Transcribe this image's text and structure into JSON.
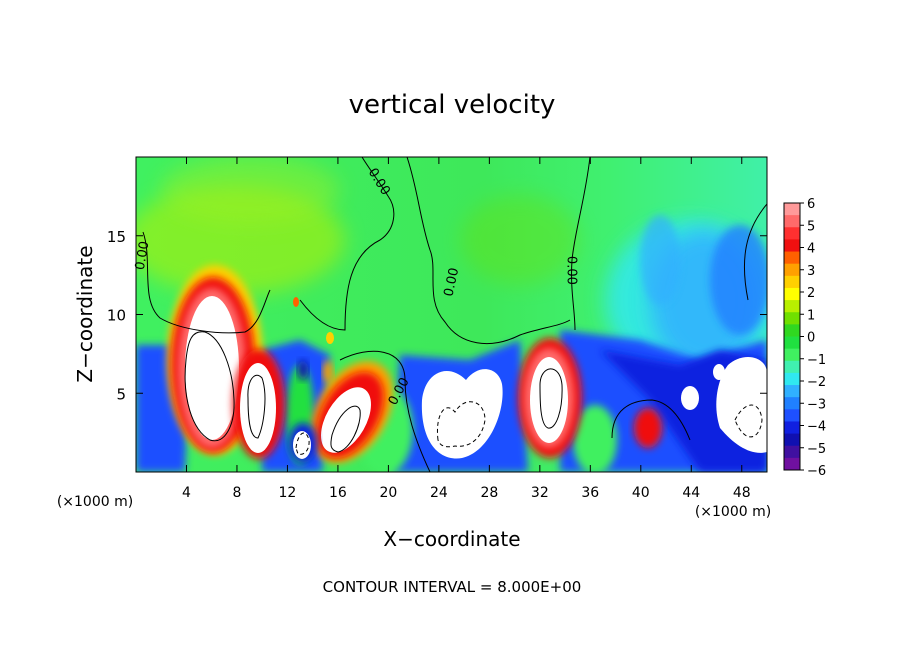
{
  "chart_data": {
    "type": "heatmap",
    "title": "vertical velocity",
    "xlabel": "X−coordinate",
    "ylabel": "Z−coordinate",
    "x_unit": "(×1000 m)",
    "z_unit": "(×1000 m)",
    "footer": "CONTOUR INTERVAL = 8.000E+00",
    "xlim": [
      0,
      50
    ],
    "ylim": [
      0,
      20
    ],
    "x_ticks": [
      4,
      8,
      12,
      16,
      20,
      24,
      28,
      32,
      36,
      40,
      44,
      48
    ],
    "x_tick_labels": [
      "4",
      "8",
      "12",
      "16",
      "20",
      "24",
      "28",
      "32",
      "36",
      "40",
      "44",
      "48"
    ],
    "y_ticks": [
      5,
      10,
      15
    ],
    "y_tick_labels": [
      "5",
      "10",
      "15"
    ],
    "colorbar": {
      "min": -6,
      "max": 6,
      "tick_labels": [
        "6",
        "5",
        "4",
        "3",
        "2",
        "1",
        "0",
        "−1",
        "−2",
        "−3",
        "−4",
        "−5",
        "−6"
      ],
      "colors": [
        "#ff9a9a",
        "#ff6a6a",
        "#ff3030",
        "#f01010",
        "#ff6000",
        "#ffa000",
        "#ffd000",
        "#ffff00",
        "#b8f000",
        "#70e000",
        "#30d820",
        "#20e040",
        "#40f060",
        "#40f0b0",
        "#30e8f0",
        "#30b0ff",
        "#2080ff",
        "#1e50ff",
        "#1020e0",
        "#1010b0",
        "#4010a0",
        "#7010a0"
      ]
    },
    "contour_labels": [
      {
        "text": "0.00",
        "x": 0.8,
        "z": 13.7,
        "rotate": -80
      },
      {
        "text": "0.00",
        "x": 19.0,
        "z": 18.3,
        "rotate": 58
      },
      {
        "text": "0.00",
        "x": 25.3,
        "z": 12.0,
        "rotate": -78
      },
      {
        "text": "0.00",
        "x": 34.2,
        "z": 12.8,
        "rotate": 90
      },
      {
        "text": "0.00",
        "x": 21.1,
        "z": 5.0,
        "rotate": -62
      }
    ],
    "features": {
      "updrafts_w_gt_6": [
        {
          "x": 6.5,
          "z": 6.5,
          "rx": 2.6,
          "rz": 5.2
        },
        {
          "x": 10.0,
          "z": 4.6,
          "rx": 1.5,
          "rz": 3.3
        },
        {
          "x": 16.8,
          "z": 2.9,
          "rx": 1.8,
          "rz": 2.5
        },
        {
          "x": 26.2,
          "z": 3.9,
          "rx": 2.8,
          "rz": 3.0
        },
        {
          "x": 32.5,
          "z": 4.8,
          "rx": 1.8,
          "rz": 3.8
        }
      ],
      "downdrafts_w_lt_minus6": [
        {
          "x": 13.2,
          "z": 2.0,
          "rx": 1.0,
          "rz": 1.6
        },
        {
          "x": 47.7,
          "z": 4.6,
          "rx": 1.4,
          "rz": 2.6
        }
      ]
    }
  }
}
